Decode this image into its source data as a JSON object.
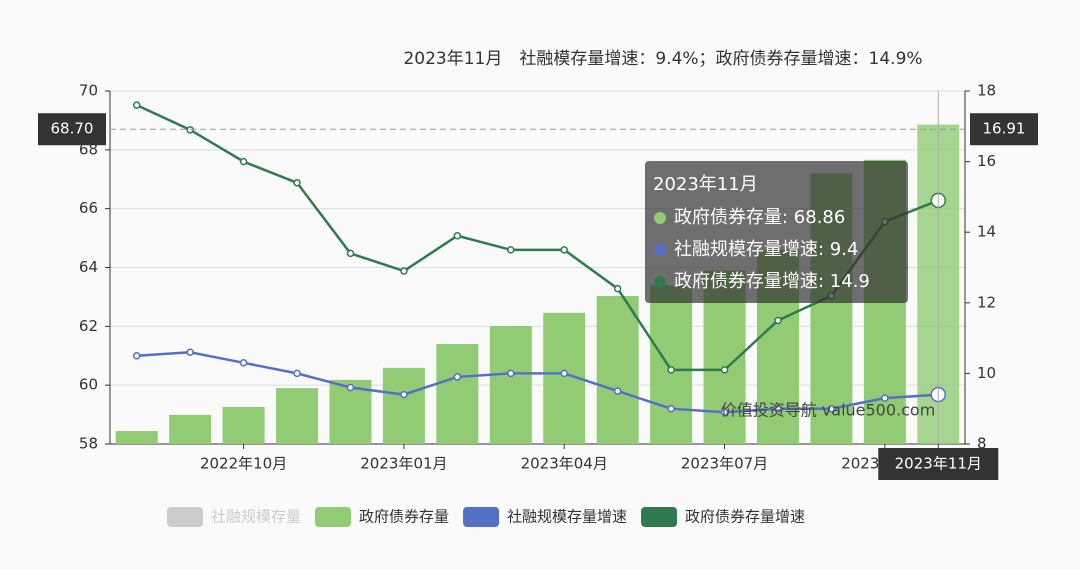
{
  "chart_data": {
    "type": "bar_line",
    "title": "2023年11月　社融模存量增速：9.4%；政府债券存量增速：14.9%",
    "categories": [
      null,
      null,
      "2022年10月",
      null,
      null,
      "2023年01月",
      null,
      null,
      "2023年04月",
      null,
      null,
      "2023年07月",
      null,
      null,
      "2023年10月",
      "2023年11月"
    ],
    "series": [
      {
        "name": "社融规模存量",
        "color": "#cccccc",
        "disabled": true
      },
      {
        "name": "政府债券存量",
        "color": "#91cc75",
        "kind": "bar",
        "axis": "y",
        "values": [
          58.44,
          58.99,
          59.26,
          59.9,
          60.18,
          60.59,
          61.4,
          62.01,
          62.46,
          63.03,
          63.4,
          63.9,
          64.6,
          67.2,
          67.66,
          68.86
        ]
      },
      {
        "name": "社融规模存量增速",
        "color": "#5470c6",
        "kind": "line",
        "axis": "y2",
        "values": [
          10.5,
          10.6,
          10.3,
          10.0,
          9.6,
          9.4,
          9.9,
          10.0,
          10.0,
          9.5,
          9.0,
          8.9,
          9.0,
          9.0,
          9.3,
          9.4
        ]
      },
      {
        "name": "政府债券存量增速",
        "color": "#317a50",
        "kind": "line",
        "axis": "y2",
        "values": [
          17.6,
          16.9,
          16.0,
          15.4,
          13.4,
          12.9,
          13.9,
          13.5,
          13.5,
          12.4,
          10.1,
          10.1,
          11.5,
          12.2,
          14.3,
          14.9
        ]
      }
    ],
    "ylim": [
      58,
      70
    ],
    "yticks": [
      58,
      60,
      62,
      64,
      66,
      68,
      70
    ],
    "y2lim": [
      8,
      18
    ],
    "y2ticks": [
      8,
      10,
      12,
      14,
      16,
      18
    ],
    "grid": true,
    "pointer": {
      "y": {
        "value": 68.7,
        "label": "68.70"
      },
      "y2": 16.91,
      "index": 15
    },
    "tooltip": {
      "rows": [
        "政府债券存量: 68.86",
        "社融规模存量增速: 9.4",
        "政府债券存量增速: 14.9"
      ]
    },
    "watermark": "价值投资导航 value500.com"
  }
}
